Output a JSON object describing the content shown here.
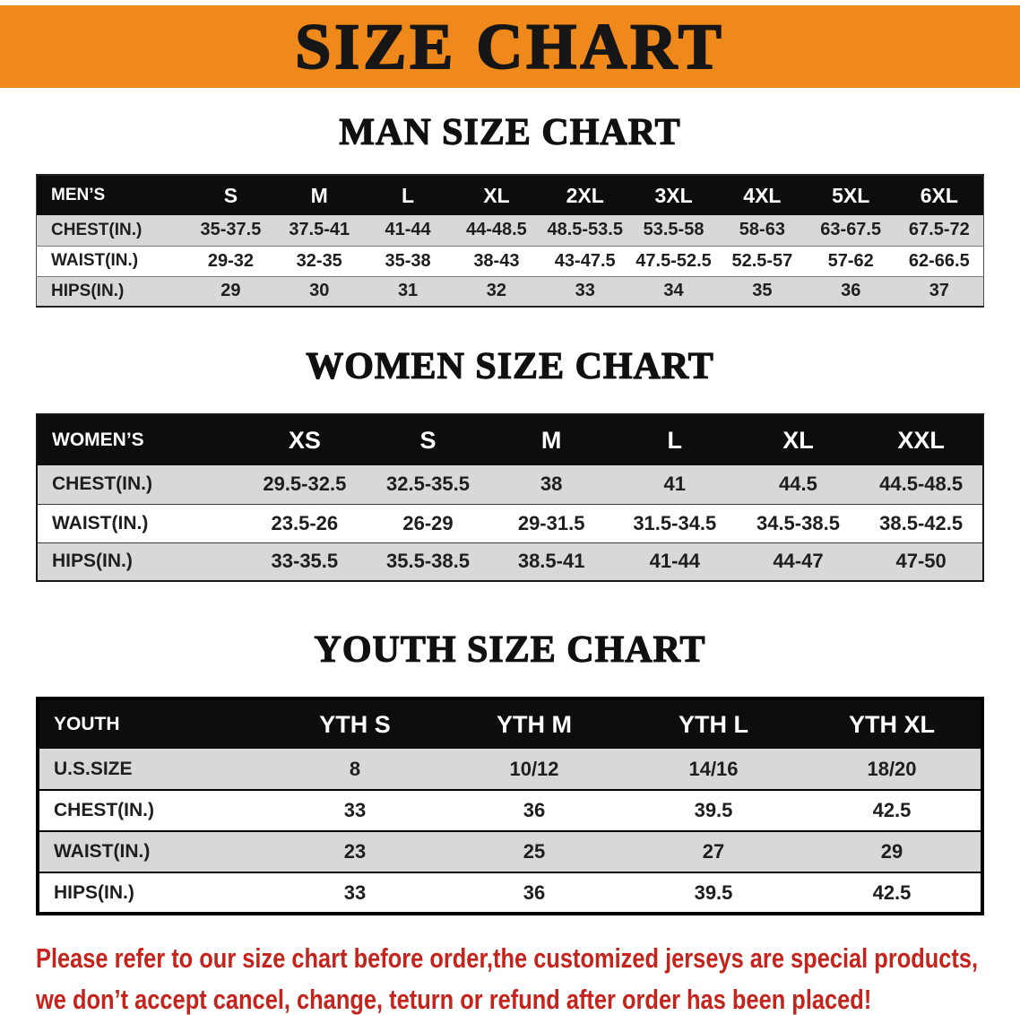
{
  "banner": {
    "title": "SIZE CHART",
    "bg_color": "#F0891C",
    "text_color": "#161616"
  },
  "sections": [
    {
      "id": "men",
      "heading": "MAN SIZE CHART",
      "table": {
        "title": "MEN’S",
        "header": [
          "MEN’S",
          "S",
          "M",
          "L",
          "XL",
          "2XL",
          "3XL",
          "4XL",
          "5XL",
          "6XL"
        ],
        "rows": [
          [
            "CHEST(IN.)",
            "35-37.5",
            "37.5-41",
            "41-44",
            "44-48.5",
            "48.5-53.5",
            "53.5-58",
            "58-63",
            "63-67.5",
            "67.5-72"
          ],
          [
            "WAIST(IN.)",
            "29-32",
            "32-35",
            "35-38",
            "38-43",
            "43-47.5",
            "47.5-52.5",
            "52.5-57",
            "57-62",
            "62-66.5"
          ],
          [
            "HIPS(IN.)",
            "29",
            "30",
            "31",
            "32",
            "33",
            "34",
            "35",
            "36",
            "37"
          ]
        ]
      }
    },
    {
      "id": "women",
      "heading": "WOMEN SIZE CHART",
      "table": {
        "title": "WOMEN’S",
        "header": [
          "WOMEN’S",
          "XS",
          "S",
          "M",
          "L",
          "XL",
          "XXL"
        ],
        "rows": [
          [
            "CHEST(IN.)",
            "29.5-32.5",
            "32.5-35.5",
            "38",
            "41",
            "44.5",
            "44.5-48.5"
          ],
          [
            "WAIST(IN.)",
            "23.5-26",
            "26-29",
            "29-31.5",
            "31.5-34.5",
            "34.5-38.5",
            "38.5-42.5"
          ],
          [
            "HIPS(IN.)",
            "33-35.5",
            "35.5-38.5",
            "38.5-41",
            "41-44",
            "44-47",
            "47-50"
          ]
        ]
      }
    },
    {
      "id": "youth",
      "heading": "YOUTH SIZE CHART",
      "table": {
        "title": "YOUTH",
        "header": [
          "YOUTH",
          "YTH S",
          "YTH M",
          "YTH L",
          "YTH XL"
        ],
        "rows": [
          [
            "U.S.SIZE",
            "8",
            "10/12",
            "14/16",
            "18/20"
          ],
          [
            "CHEST(IN.)",
            "33",
            "36",
            "39.5",
            "42.5"
          ],
          [
            "WAIST(IN.)",
            "23",
            "25",
            "27",
            "29"
          ],
          [
            "HIPS(IN.)",
            "33",
            "36",
            "39.5",
            "42.5"
          ]
        ]
      }
    }
  ],
  "table_colors": {
    "header_bg": "#0d0d0d",
    "header_text": "#ffffff",
    "stripe_gray": "#d8d8d8",
    "stripe_white": "#ffffff"
  },
  "footer": {
    "text_color": "#C5241D",
    "lines": [
      "Please refer to our size chart before order,the customized jerseys are special products,",
      "we don’t accept cancel, change, teturn or refund after order has been placed!"
    ]
  }
}
